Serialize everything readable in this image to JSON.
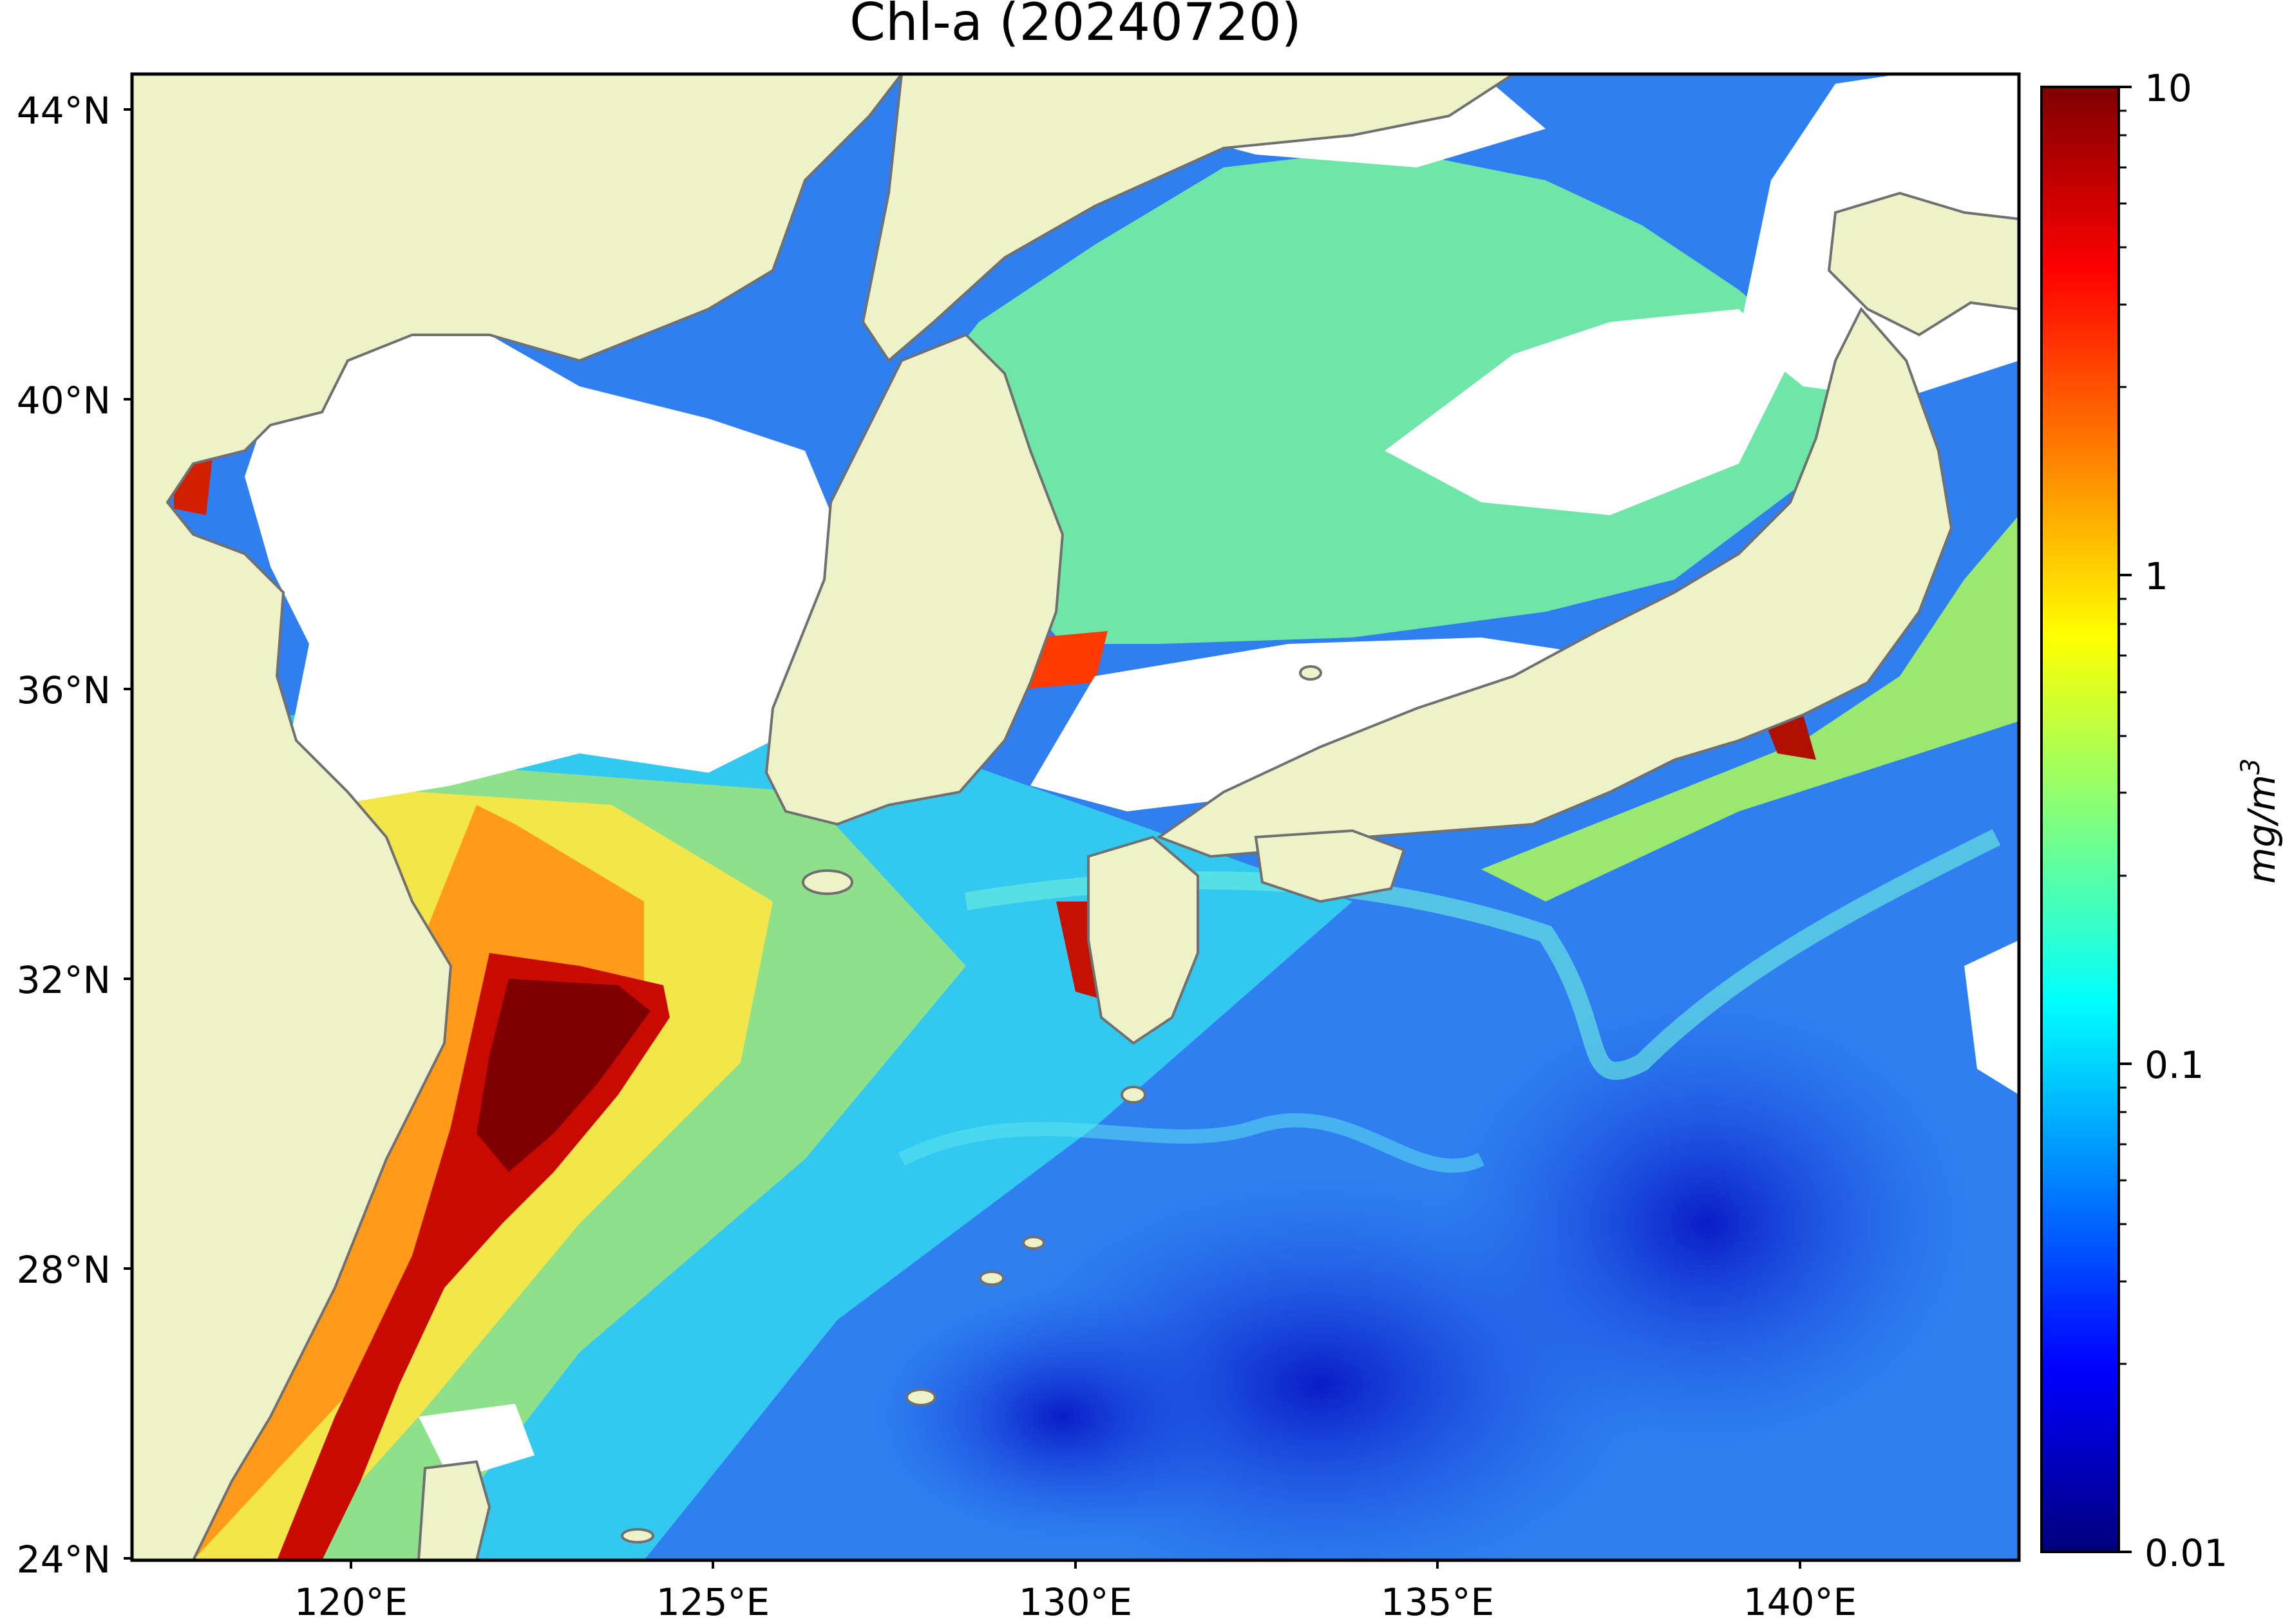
{
  "title": "Chl-a (20240720)",
  "map": {
    "land_color": "#eef2c8",
    "cloud_color": "#ffffff",
    "coastline_color": "#707070",
    "lat_ticks": [
      "44°N",
      "40°N",
      "36°N",
      "32°N",
      "28°N",
      "24°N"
    ],
    "lon_ticks": [
      "120°E",
      "125°E",
      "130°E",
      "135°E",
      "140°E"
    ]
  },
  "colorbar": {
    "label": "mg/m",
    "label_superscript": "3",
    "scale": "log",
    "min": 0.01,
    "max": 10,
    "tick_labels": [
      "10",
      "1",
      "0.1",
      "0.01"
    ],
    "colormap": "jet",
    "colormap_stops": [
      "#00007f",
      "#0000ff",
      "#007fff",
      "#00ffff",
      "#7fff7f",
      "#ffff00",
      "#ff7f00",
      "#ff0000",
      "#7f0000"
    ]
  }
}
